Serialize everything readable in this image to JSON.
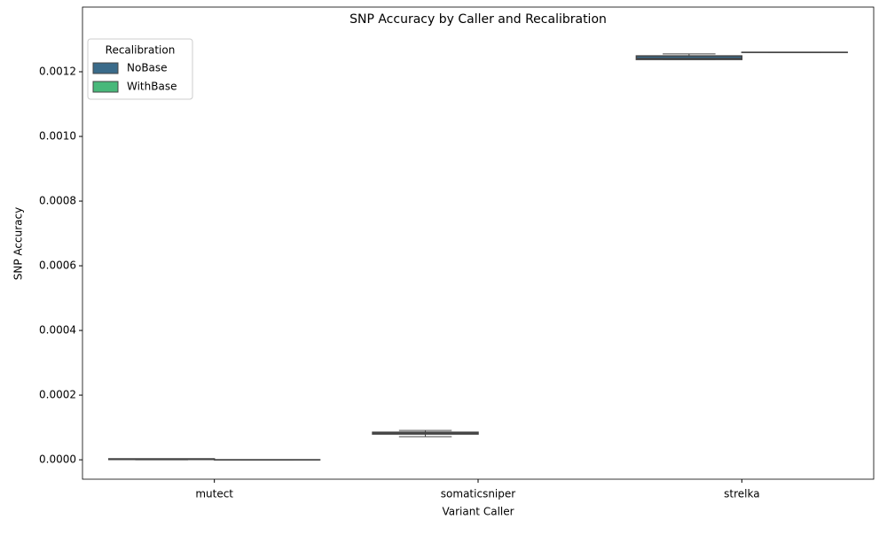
{
  "chart_data": {
    "type": "box",
    "title": "SNP Accuracy by Caller and Recalibration",
    "xlabel": "Variant Caller",
    "ylabel": "SNP Accuracy",
    "categories": [
      "mutect",
      "somaticsniper",
      "strelka"
    ],
    "series": [
      {
        "name": "NoBase",
        "color": "#3a6b8a",
        "boxes": [
          {
            "min": 0,
            "q1": 1e-06,
            "median": 2e-06,
            "q3": 3e-06,
            "max": 3e-06
          },
          {
            "min": 7.14e-05,
            "q1": 7.96e-05,
            "median": 8.3e-05,
            "q3": 8.51e-05,
            "max": 9.06e-05
          },
          {
            "min": 0.001238,
            "q1": 0.001238,
            "median": 0.001241,
            "q3": 0.001249,
            "max": 0.001255
          }
        ]
      },
      {
        "name": "WithBase",
        "color": "#48b87a",
        "boxes": [
          {
            "min": 0,
            "q1": 0,
            "median": 0,
            "q3": 0,
            "max": 0
          },
          null,
          {
            "min": 0.00126,
            "q1": 0.00126,
            "median": 0.00126,
            "q3": 0.00126,
            "max": 0.00126
          }
        ]
      }
    ],
    "ylim": [
      -6e-05,
      0.0014
    ],
    "yticks": [
      {
        "value": 0,
        "label": "0.0000"
      },
      {
        "value": 0.0002,
        "label": "0.0002"
      },
      {
        "value": 0.0004,
        "label": "0.0004"
      },
      {
        "value": 0.0006,
        "label": "0.0006"
      },
      {
        "value": 0.0008,
        "label": "0.0008"
      },
      {
        "value": 0.001,
        "label": "0.0010"
      },
      {
        "value": 0.0012,
        "label": "0.0012"
      }
    ],
    "grid": false,
    "legend": {
      "title": "Recalibration",
      "position": "upper-left"
    }
  }
}
